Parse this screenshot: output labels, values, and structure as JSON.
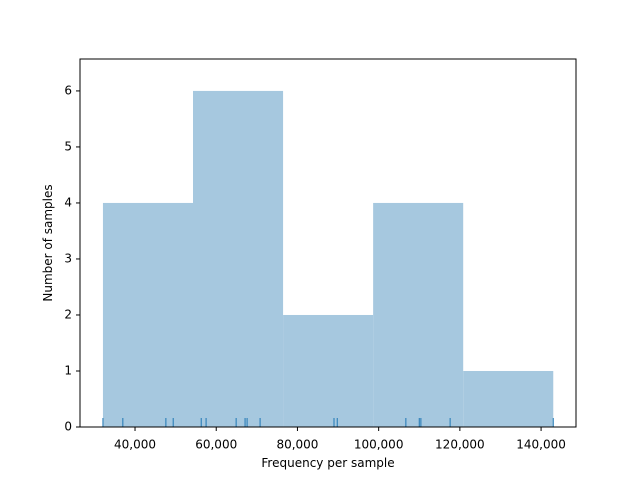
{
  "chart_data": {
    "type": "histogram",
    "x_label": "Frequency per sample",
    "y_label": "Number of samples",
    "bins": [
      32100,
      54280,
      76460,
      98640,
      120820,
      143000
    ],
    "counts": [
      4,
      6,
      2,
      4,
      1
    ],
    "color": "#a6c8df",
    "rug": [
      32100,
      37000,
      47600,
      49400,
      56300,
      57500,
      64900,
      67100,
      67600,
      70800,
      89000,
      89800,
      106700,
      110000,
      110400,
      117600,
      143000
    ],
    "rug_color": "#1f77b4",
    "xlim": [
      26450,
      148600
    ],
    "xticks": [
      {
        "value": 40000,
        "label": "40,000"
      },
      {
        "value": 60000,
        "label": "60,000"
      },
      {
        "value": 80000,
        "label": "80,000"
      },
      {
        "value": 100000,
        "label": "100,000"
      },
      {
        "value": 120000,
        "label": "120,000"
      },
      {
        "value": 140000,
        "label": "140,000"
      }
    ],
    "ylim": [
      0,
      6.57
    ],
    "yticks": [
      0,
      1,
      2,
      3,
      4,
      5,
      6
    ]
  }
}
